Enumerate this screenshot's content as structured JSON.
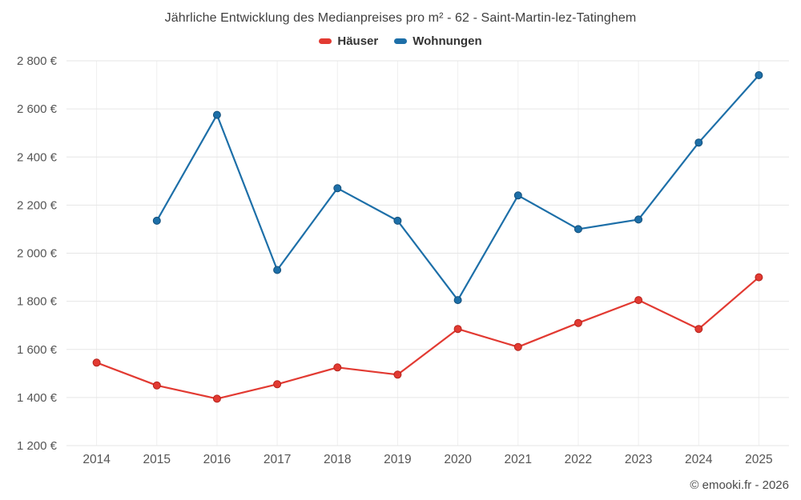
{
  "header": {
    "title": "Jährliche Entwicklung des Medianpreises pro m² - 62 - Saint-Martin-lez-Tatinghem"
  },
  "footer": {
    "credit": "© emooki.fr - 2026"
  },
  "chart_data": {
    "type": "line",
    "title": "Jährliche Entwicklung des Medianpreises pro m² - 62 - Saint-Martin-lez-Tatinghem",
    "categories": [
      "2014",
      "2015",
      "2016",
      "2017",
      "2018",
      "2019",
      "2020",
      "2021",
      "2022",
      "2023",
      "2024",
      "2025"
    ],
    "series": [
      {
        "name": "Häuser",
        "color": "#e23a32",
        "marker_stroke": "#b5231c",
        "values": [
          1545,
          1450,
          1395,
          1455,
          1525,
          1495,
          1685,
          1610,
          1710,
          1805,
          1685,
          1900
        ]
      },
      {
        "name": "Wohnungen",
        "color": "#1d6fa8",
        "marker_stroke": "#134f7a",
        "values": [
          null,
          2135,
          2575,
          1930,
          2270,
          2135,
          1805,
          2240,
          2100,
          2140,
          2460,
          2740
        ]
      }
    ],
    "ylim": [
      1200,
      2800
    ],
    "ytick_step": 200,
    "yticks": [
      {
        "value": 1200,
        "label": "1 200 €"
      },
      {
        "value": 1400,
        "label": "1 400 €"
      },
      {
        "value": 1600,
        "label": "1 600 €"
      },
      {
        "value": 1800,
        "label": "1 800 €"
      },
      {
        "value": 2000,
        "label": "2 000 €"
      },
      {
        "value": 2200,
        "label": "2 200 €"
      },
      {
        "value": 2400,
        "label": "2 400 €"
      },
      {
        "value": 2600,
        "label": "2 600 €"
      },
      {
        "value": 2800,
        "label": "2 800 €"
      }
    ],
    "grid": true,
    "legend_position": "top",
    "styles": {
      "grid_color_h": "#e6e6e6",
      "grid_color_v": "#efefef",
      "axis_label_color": "#555555",
      "line_width": 2.2,
      "marker_radius": 4.5
    }
  }
}
